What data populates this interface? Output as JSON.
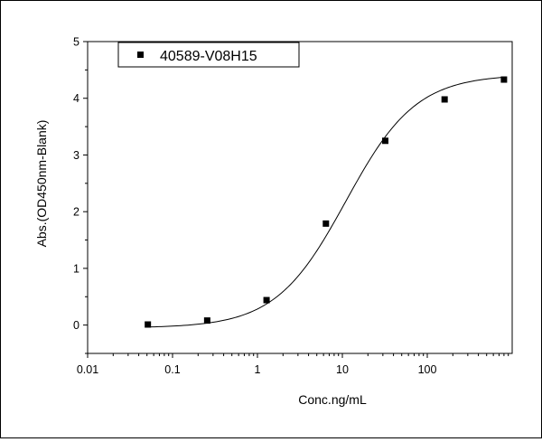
{
  "chart_data": {
    "type": "scatter",
    "xlabel": "Conc.ng/mL",
    "ylabel": "Abs.(OD450nm-Blank)",
    "x_scale": "log",
    "xlim": [
      0.01,
      1000
    ],
    "ylim": [
      -0.5,
      5
    ],
    "x_ticks": [
      0.01,
      0.1,
      1,
      10,
      100
    ],
    "x_tick_labels": [
      "0.01",
      "0.1",
      "1",
      "10",
      "100"
    ],
    "y_ticks": [
      0,
      1,
      2,
      3,
      4,
      5
    ],
    "y_tick_labels": [
      "0",
      "1",
      "2",
      "3",
      "4",
      "5"
    ],
    "legend": {
      "position": "top-left",
      "entries": [
        "40589-V08H15"
      ]
    },
    "grid": false,
    "series": [
      {
        "name": "40589-V08H15",
        "marker": "square",
        "color": "#000000",
        "x": [
          0.0512,
          0.256,
          1.28,
          6.4,
          32,
          160,
          800
        ],
        "y": [
          0.01,
          0.08,
          0.44,
          1.79,
          3.25,
          3.98,
          4.33
        ]
      }
    ],
    "fit_curve": {
      "type": "4PL",
      "bottom": -0.05,
      "top": 4.42,
      "ec50": 11.0,
      "hill": 1.05,
      "color": "#000000"
    }
  }
}
